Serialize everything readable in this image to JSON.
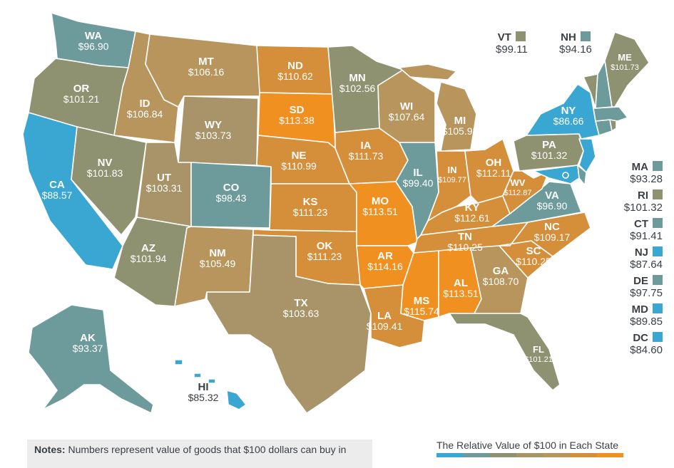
{
  "colors": {
    "blue": "#3aa6d2",
    "teal": "#6d9b9b",
    "sage": "#8e9270",
    "olive": "#a89468",
    "tan": "#b8955c",
    "amber": "#d58f3a",
    "orange": "#ef9020",
    "border": "#ffffff"
  },
  "states": [
    {
      "id": "WA",
      "abbr": "WA",
      "value": "$96.90",
      "color": "teal"
    },
    {
      "id": "OR",
      "abbr": "OR",
      "value": "$101.21",
      "color": "sage"
    },
    {
      "id": "CA",
      "abbr": "CA",
      "value": "$88.57",
      "color": "blue"
    },
    {
      "id": "ID",
      "abbr": "ID",
      "value": "$106.84",
      "color": "tan"
    },
    {
      "id": "NV",
      "abbr": "NV",
      "value": "$101.83",
      "color": "sage"
    },
    {
      "id": "MT",
      "abbr": "MT",
      "value": "$106.16",
      "color": "tan"
    },
    {
      "id": "WY",
      "abbr": "WY",
      "value": "$103.73",
      "color": "olive"
    },
    {
      "id": "UT",
      "abbr": "UT",
      "value": "$103.31",
      "color": "olive"
    },
    {
      "id": "AZ",
      "abbr": "AZ",
      "value": "$101.94",
      "color": "sage"
    },
    {
      "id": "CO",
      "abbr": "CO",
      "value": "$98.43",
      "color": "teal"
    },
    {
      "id": "NM",
      "abbr": "NM",
      "value": "$105.49",
      "color": "tan"
    },
    {
      "id": "ND",
      "abbr": "ND",
      "value": "$110.62",
      "color": "amber"
    },
    {
      "id": "SD",
      "abbr": "SD",
      "value": "$113.38",
      "color": "orange"
    },
    {
      "id": "NE",
      "abbr": "NE",
      "value": "$110.99",
      "color": "amber"
    },
    {
      "id": "KS",
      "abbr": "KS",
      "value": "$111.23",
      "color": "amber"
    },
    {
      "id": "OK",
      "abbr": "OK",
      "value": "$111.23",
      "color": "amber"
    },
    {
      "id": "TX",
      "abbr": "TX",
      "value": "$103.63",
      "color": "olive"
    },
    {
      "id": "MN",
      "abbr": "MN",
      "value": "$102.56",
      "color": "sage"
    },
    {
      "id": "IA",
      "abbr": "IA",
      "value": "$111.73",
      "color": "amber"
    },
    {
      "id": "MO",
      "abbr": "MO",
      "value": "$113.51",
      "color": "orange"
    },
    {
      "id": "AR",
      "abbr": "AR",
      "value": "$114.16",
      "color": "orange"
    },
    {
      "id": "LA",
      "abbr": "LA",
      "value": "$109.41",
      "color": "amber"
    },
    {
      "id": "WI",
      "abbr": "WI",
      "value": "$107.64",
      "color": "tan"
    },
    {
      "id": "IL",
      "abbr": "IL",
      "value": "$99.40",
      "color": "teal"
    },
    {
      "id": "MI",
      "abbr": "MI",
      "value": "$105.93",
      "color": "tan"
    },
    {
      "id": "IN",
      "abbr": "IN",
      "value": "$109.77",
      "color": "amber"
    },
    {
      "id": "OH",
      "abbr": "OH",
      "value": "$112.11",
      "color": "amber"
    },
    {
      "id": "KY",
      "abbr": "KY",
      "value": "$112.61",
      "color": "amber"
    },
    {
      "id": "TN",
      "abbr": "TN",
      "value": "$110.25",
      "color": "amber"
    },
    {
      "id": "MS",
      "abbr": "MS",
      "value": "$115.74",
      "color": "orange"
    },
    {
      "id": "AL",
      "abbr": "AL",
      "value": "$113.51",
      "color": "orange"
    },
    {
      "id": "GA",
      "abbr": "GA",
      "value": "$108.70",
      "color": "tan"
    },
    {
      "id": "FL",
      "abbr": "FL",
      "value": "$101.21",
      "color": "sage"
    },
    {
      "id": "SC",
      "abbr": "SC",
      "value": "$110.25",
      "color": "amber"
    },
    {
      "id": "NC",
      "abbr": "NC",
      "value": "$109.17",
      "color": "amber"
    },
    {
      "id": "VA",
      "abbr": "VA",
      "value": "$96.90",
      "color": "teal"
    },
    {
      "id": "WV",
      "abbr": "WV",
      "value": "$112.87",
      "color": "amber"
    },
    {
      "id": "PA",
      "abbr": "PA",
      "value": "$101.32",
      "color": "sage"
    },
    {
      "id": "NY",
      "abbr": "NY",
      "value": "$86.66",
      "color": "blue"
    },
    {
      "id": "ME",
      "abbr": "ME",
      "value": "$101.73",
      "color": "sage"
    },
    {
      "id": "AK",
      "abbr": "AK",
      "value": "$93.37",
      "color": "teal"
    },
    {
      "id": "HI",
      "abbr": "HI",
      "value": "$85.32",
      "color": "blue"
    },
    {
      "id": "VT",
      "abbr": "VT",
      "value": "$99.11",
      "color": "sage"
    },
    {
      "id": "NH",
      "abbr": "NH",
      "value": "$94.16",
      "color": "teal"
    },
    {
      "id": "MA",
      "abbr": "MA",
      "value": "$93.28",
      "color": "teal"
    },
    {
      "id": "RI",
      "abbr": "RI",
      "value": "$101.32",
      "color": "sage"
    },
    {
      "id": "CT",
      "abbr": "CT",
      "value": "$91.41",
      "color": "teal"
    },
    {
      "id": "NJ",
      "abbr": "NJ",
      "value": "$87.64",
      "color": "blue"
    },
    {
      "id": "DE",
      "abbr": "DE",
      "value": "$97.75",
      "color": "teal"
    },
    {
      "id": "MD",
      "abbr": "MD",
      "value": "$89.85",
      "color": "blue"
    },
    {
      "id": "DC",
      "abbr": "DC",
      "value": "$84.60",
      "color": "blue"
    }
  ],
  "notes": {
    "label": "Notes:",
    "text": "Numbers represent value of goods that $100 dollars can buy in"
  },
  "legend": {
    "title": "The Relative Value of $100 in Each State",
    "colors": [
      "#3aa6d2",
      "#6d9b9b",
      "#8e9270",
      "#a89468",
      "#b8955c",
      "#d58f3a",
      "#ef9020"
    ]
  }
}
